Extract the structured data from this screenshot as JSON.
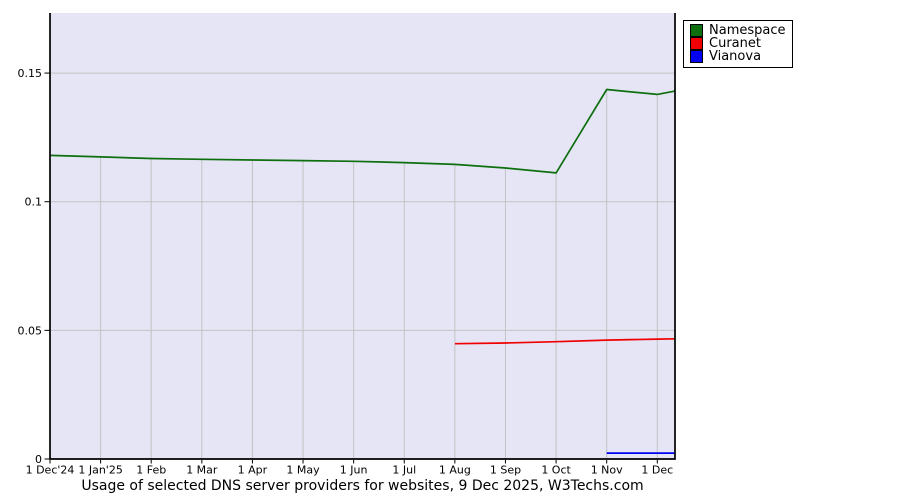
{
  "chart_data": {
    "type": "line",
    "title": "Usage of selected DNS server providers for websites, 9 Dec 2025, W3Techs.com",
    "x_axis": {
      "tick_labels": [
        "1 Dec'24",
        "1 Jan'25",
        "1 Feb",
        "1 Mar",
        "1 Apr",
        "1 May",
        "1 Jun",
        "1 Jul",
        "1 Aug",
        "1 Sep",
        "1 Oct",
        "1 Nov",
        "1 Dec"
      ],
      "tick_values": [
        0,
        1,
        2,
        3,
        4,
        5,
        6,
        7,
        8,
        9,
        10,
        11,
        12
      ],
      "lim": [
        0,
        12.35
      ]
    },
    "y_axis": {
      "tick_labels": [
        "0",
        "0.05",
        "0.1",
        "0.15"
      ],
      "tick_values": [
        0,
        0.05,
        0.1,
        0.15
      ],
      "lim": [
        0,
        0.17335
      ]
    },
    "grid": true,
    "series": [
      {
        "name": "Namespace",
        "color": "#0e6f0e",
        "x": [
          0,
          1,
          2,
          3,
          4,
          5,
          6,
          7,
          8,
          9,
          10,
          11,
          12,
          12.35
        ],
        "values": [
          0.118,
          0.1174,
          0.1168,
          0.1165,
          0.1162,
          0.116,
          0.1157,
          0.1152,
          0.1145,
          0.1131,
          0.1112,
          0.1436,
          0.1417,
          0.143
        ]
      },
      {
        "name": "Curanet",
        "color": "#f00000",
        "x": [
          8,
          9,
          10,
          11,
          12,
          12.35
        ],
        "values": [
          0.0448,
          0.0451,
          0.0456,
          0.0462,
          0.0466,
          0.0467
        ]
      },
      {
        "name": "Vianova",
        "color": "#0000f0",
        "x": [
          11,
          12,
          12.35
        ],
        "values": [
          0.0023,
          0.0023,
          0.0023
        ]
      }
    ],
    "legend": {
      "position": "top-right",
      "entries": [
        {
          "label": "Namespace",
          "color": "#0e6f0e"
        },
        {
          "label": "Curanet",
          "color": "#f00000"
        },
        {
          "label": "Vianova",
          "color": "#0000f0"
        }
      ]
    },
    "colors": {
      "plot_bg": "#e5e5f6",
      "grid": "#c3c3c3",
      "axis": "#000000",
      "text": "#000000"
    }
  }
}
